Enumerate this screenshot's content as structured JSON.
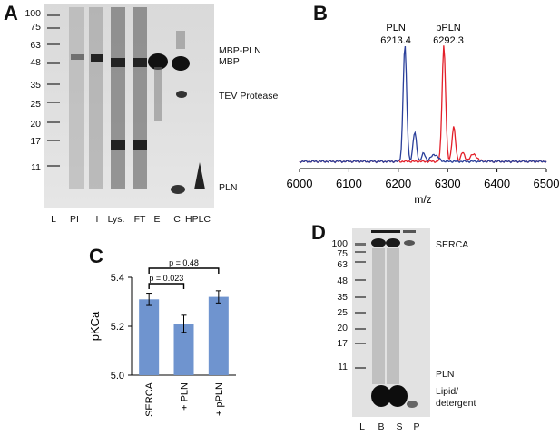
{
  "panels": {
    "A": {
      "letter": "A",
      "mw_markers": [
        "100",
        "75",
        "63",
        "48",
        "35",
        "25",
        "20",
        "17",
        "11"
      ],
      "lane_labels": [
        "L",
        "PI",
        "I",
        "Lys.",
        "FT",
        "E",
        "C",
        "HPLC"
      ],
      "annotations": {
        "mbp_pln": "MBP-PLN",
        "mbp": "MBP",
        "tev": "TEV Protease",
        "pln": "PLN"
      }
    },
    "B": {
      "letter": "B",
      "peak_labels": [
        {
          "name": "PLN",
          "mass": "6213.4"
        },
        {
          "name": "pPLN",
          "mass": "6292.3"
        }
      ],
      "colors": {
        "pln": "#2a3f9a",
        "ppln": "#e3202a"
      }
    },
    "C": {
      "letter": "C",
      "brackets": [
        "p = 0.48",
        "p = 0.023"
      ],
      "bar_color": "#6f94cf"
    },
    "D": {
      "letter": "D",
      "mw_markers": [
        "100",
        "75",
        "63",
        "48",
        "35",
        "25",
        "20",
        "17",
        "11"
      ],
      "lane_labels": [
        "L",
        "B",
        "S",
        "P"
      ],
      "annotations": {
        "serca": "SERCA",
        "pln": "PLN",
        "lipid": "Lipid/",
        "detergent": "detergent"
      }
    }
  },
  "chart_data": [
    {
      "type": "line",
      "panel": "B",
      "xlabel": "m/z",
      "xlim": [
        6000,
        6500
      ],
      "x_ticks": [
        "6000",
        "6100",
        "6200",
        "6300",
        "6400",
        "6500"
      ],
      "series": [
        {
          "name": "PLN",
          "peak_x": 6213.4
        },
        {
          "name": "pPLN",
          "peak_x": 6292.3
        }
      ]
    },
    {
      "type": "bar",
      "panel": "C",
      "ylabel": "pKCa",
      "ylim": [
        5.0,
        5.4
      ],
      "y_ticks": [
        "5.0",
        "5.2",
        "5.4"
      ],
      "categories": [
        "SERCA",
        "+ PLN",
        "+ pPLN"
      ],
      "values": [
        5.31,
        5.21,
        5.32
      ],
      "errors": [
        0.025,
        0.035,
        0.025
      ]
    }
  ]
}
